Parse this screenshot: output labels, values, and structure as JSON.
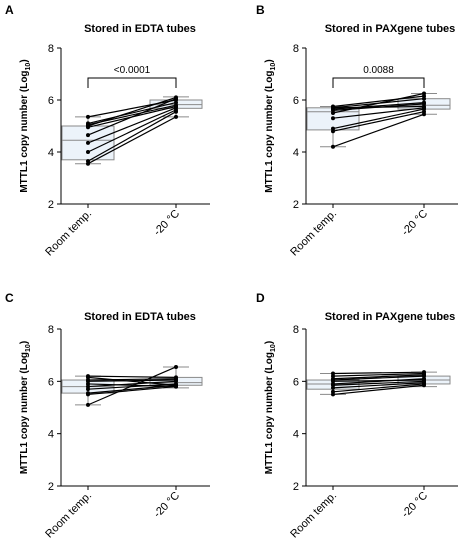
{
  "chart_data": [
    {
      "type": "box-paired",
      "panel_label": "A",
      "title": "Stored in EDTA tubes",
      "ylabel": "MTTL1 copy number (Log",
      "ylabel_sub": "10",
      "ylabel_close": ")",
      "ylim": [
        2,
        8
      ],
      "yticks": [
        2,
        4,
        6,
        8
      ],
      "categories": [
        "Room temp.",
        "-20 °C"
      ],
      "box_color": "#c9dcf0",
      "annotation": "<0.0001",
      "boxes": [
        {
          "min": 3.55,
          "q1": 3.7,
          "median": 4.45,
          "q3": 5.0,
          "max": 5.35
        },
        {
          "min": 5.35,
          "q1": 5.68,
          "median": 5.82,
          "q3": 6.0,
          "max": 6.12
        }
      ],
      "pairs": [
        [
          3.55,
          5.35
        ],
        [
          3.65,
          5.55
        ],
        [
          4.0,
          5.62
        ],
        [
          4.35,
          5.7
        ],
        [
          4.95,
          5.75
        ],
        [
          5.05,
          5.8
        ],
        [
          5.1,
          5.9
        ],
        [
          5.35,
          6.0
        ],
        [
          4.65,
          6.05
        ],
        [
          5.0,
          6.1
        ]
      ]
    },
    {
      "type": "box-paired",
      "panel_label": "B",
      "title": "Stored in PAXgene tubes",
      "ylabel": "MTTL1 copy number (Log",
      "ylabel_sub": "10",
      "ylabel_close": ")",
      "ylim": [
        2,
        8
      ],
      "yticks": [
        2,
        4,
        6,
        8
      ],
      "categories": [
        "Room temp.",
        "-20 °C"
      ],
      "box_color": "#c9dcf0",
      "annotation": "0.0088",
      "boxes": [
        {
          "min": 4.2,
          "q1": 4.85,
          "median": 5.55,
          "q3": 5.7,
          "max": 5.75
        },
        {
          "min": 5.45,
          "q1": 5.65,
          "median": 5.8,
          "q3": 6.05,
          "max": 6.25
        }
      ],
      "pairs": [
        [
          4.2,
          5.45
        ],
        [
          4.8,
          5.55
        ],
        [
          4.9,
          5.65
        ],
        [
          5.3,
          5.7
        ],
        [
          5.6,
          5.85
        ],
        [
          5.65,
          5.9
        ],
        [
          5.7,
          6.05
        ],
        [
          5.75,
          6.15
        ],
        [
          5.5,
          6.25
        ],
        [
          5.7,
          5.75
        ]
      ]
    },
    {
      "type": "box-paired",
      "panel_label": "C",
      "title": "Stored in EDTA tubes",
      "ylabel": "MTTL1 copy number (Log",
      "ylabel_sub": "10",
      "ylabel_close": ")",
      "ylim": [
        2,
        8
      ],
      "yticks": [
        2,
        4,
        6,
        8
      ],
      "categories": [
        "Room temp.",
        "-20 °C"
      ],
      "box_color": "#c9dcf0",
      "annotation": "",
      "boxes": [
        {
          "min": 5.1,
          "q1": 5.55,
          "median": 5.8,
          "q3": 6.05,
          "max": 6.2
        },
        {
          "min": 5.75,
          "q1": 5.85,
          "median": 5.95,
          "q3": 6.15,
          "max": 6.55
        }
      ],
      "pairs": [
        [
          5.1,
          6.55
        ],
        [
          5.5,
          5.8
        ],
        [
          5.55,
          5.85
        ],
        [
          5.7,
          5.9
        ],
        [
          5.8,
          6.0
        ],
        [
          5.9,
          5.8
        ],
        [
          6.0,
          6.05
        ],
        [
          6.05,
          6.1
        ],
        [
          6.15,
          5.85
        ],
        [
          6.2,
          6.15
        ]
      ]
    },
    {
      "type": "box-paired",
      "panel_label": "D",
      "title": "Stored in PAXgene tubes",
      "ylabel": "MTTL1 copy number (Log",
      "ylabel_sub": "10",
      "ylabel_close": ")",
      "ylim": [
        2,
        8
      ],
      "yticks": [
        2,
        4,
        6,
        8
      ],
      "categories": [
        "Room temp.",
        "-20 °C"
      ],
      "box_color": "#c9dcf0",
      "annotation": "",
      "boxes": [
        {
          "min": 5.5,
          "q1": 5.7,
          "median": 5.9,
          "q3": 6.05,
          "max": 6.3
        },
        {
          "min": 5.8,
          "q1": 5.9,
          "median": 6.05,
          "q3": 6.2,
          "max": 6.35
        }
      ],
      "pairs": [
        [
          5.5,
          5.85
        ],
        [
          5.6,
          5.9
        ],
        [
          5.75,
          5.95
        ],
        [
          5.85,
          6.0
        ],
        [
          5.9,
          6.1
        ],
        [
          6.0,
          6.05
        ],
        [
          6.05,
          6.2
        ],
        [
          6.1,
          6.25
        ],
        [
          6.2,
          6.3
        ],
        [
          6.3,
          6.35
        ]
      ]
    }
  ]
}
